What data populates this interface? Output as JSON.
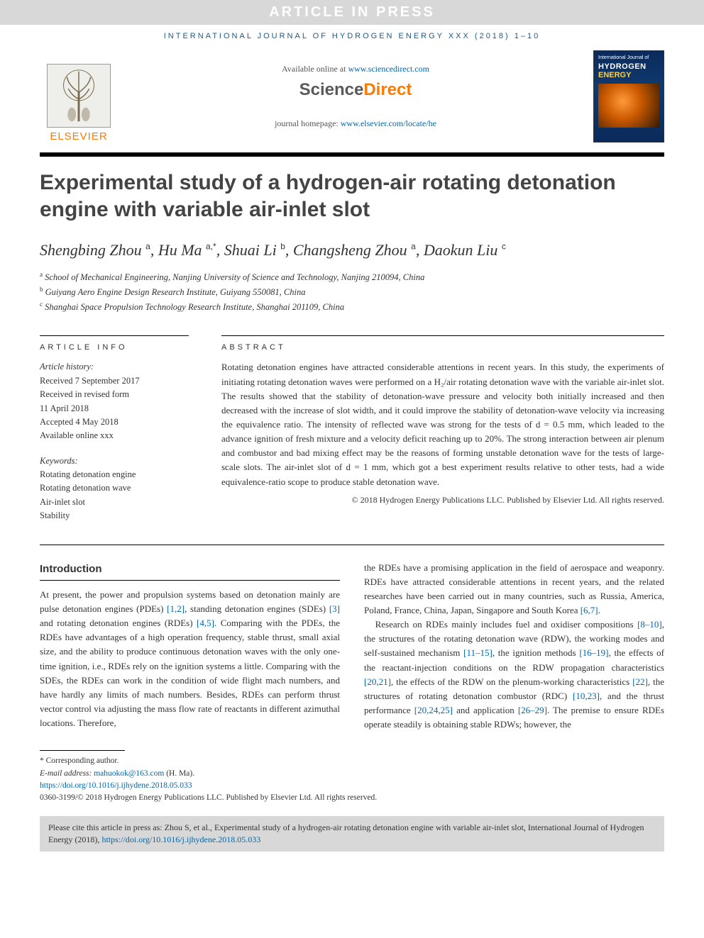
{
  "banner": "ARTICLE IN PRESS",
  "journal_ref": "INTERNATIONAL JOURNAL OF HYDROGEN ENERGY XXX (2018) 1–10",
  "header": {
    "elsevier": "ELSEVIER",
    "available": "Available online at ",
    "available_link": "www.sciencedirect.com",
    "sd_science": "Science",
    "sd_direct": "Direct",
    "homepage_label": "journal homepage: ",
    "homepage_link": "www.elsevier.com/locate/he",
    "cover_line1": "International Journal of",
    "cover_line2": "HYDROGEN",
    "cover_line3": "ENERGY"
  },
  "title": "Experimental study of a hydrogen-air rotating detonation engine with variable air-inlet slot",
  "authors_html": "Shengbing Zhou <sup>a</sup>, Hu Ma <sup>a,*</sup>, Shuai Li <sup>b</sup>, Changsheng Zhou <sup>a</sup>, Daokun Liu <sup>c</sup>",
  "affiliations": {
    "a": "School of Mechanical Engineering, Nanjing University of Science and Technology, Nanjing 210094, China",
    "b": "Guiyang Aero Engine Design Research Institute, Guiyang 550081, China",
    "c": "Shanghai Space Propulsion Technology Research Institute, Shanghai 201109, China"
  },
  "info_heading": "ARTICLE INFO",
  "abstract_heading": "ABSTRACT",
  "history_label": "Article history:",
  "history": {
    "received": "Received 7 September 2017",
    "revised1": "Received in revised form",
    "revised2": "11 April 2018",
    "accepted": "Accepted 4 May 2018",
    "online": "Available online xxx"
  },
  "keywords_label": "Keywords:",
  "keywords": [
    "Rotating detonation engine",
    "Rotating detonation wave",
    "Air-inlet slot",
    "Stability"
  ],
  "abstract": "Rotating detonation engines have attracted considerable attentions in recent years. In this study, the experiments of initiating rotating detonation waves were performed on a H₂/air rotating detonation wave with the variable air-inlet slot. The results showed that the stability of detonation-wave pressure and velocity both initially increased and then decreased with the increase of slot width, and it could improve the stability of detonation-wave velocity via increasing the equivalence ratio. The intensity of reflected wave was strong for the tests of d = 0.5 mm, which leaded to the advance ignition of fresh mixture and a velocity deficit reaching up to 20%. The strong interaction between air plenum and combustor and bad mixing effect may be the reasons of forming unstable detonation wave for the tests of large-scale slots. The air-inlet slot of d = 1 mm, which got a best experiment results relative to other tests, had a wide equivalence-ratio scope to produce stable detonation wave.",
  "copyright": "© 2018 Hydrogen Energy Publications LLC. Published by Elsevier Ltd. All rights reserved.",
  "intro_heading": "Introduction",
  "intro_col1": "At present, the power and propulsion systems based on detonation mainly are pulse detonation engines (PDEs) [1,2], standing detonation engines (SDEs) [3] and rotating detonation engines (RDEs) [4,5]. Comparing with the PDEs, the RDEs have advantages of a high operation frequency, stable thrust, small axial size, and the ability to produce continuous detonation waves with the only one-time ignition, i.e., RDEs rely on the ignition systems a little. Comparing with the SDEs, the RDEs can work in the condition of wide flight mach numbers, and have hardly any limits of mach numbers. Besides, RDEs can perform thrust vector control via adjusting the mass flow rate of reactants in different azimuthal locations. Therefore,",
  "intro_col2_p1": "the RDEs have a promising application in the field of aerospace and weaponry. RDEs have attracted considerable attentions in recent years, and the related researches have been carried out in many countries, such as Russia, America, Poland, France, China, Japan, Singapore and South Korea [6,7].",
  "intro_col2_p2": "Research on RDEs mainly includes fuel and oxidiser compositions [8–10], the structures of the rotating detonation wave (RDW), the working modes and self-sustained mechanism [11–15], the ignition methods [16–19], the effects of the reactant-injection conditions on the RDW propagation characteristics [20,21], the effects of the RDW on the plenum-working characteristics [22], the structures of rotating detonation combustor (RDC) [10,23], and the thrust performance [20,24,25] and application [26–29]. The premise to ensure RDEs operate steadily is obtaining stable RDWs; however, the",
  "footnotes": {
    "corresponding": "* Corresponding author.",
    "email_label": "E-mail address: ",
    "email": "mahuokok@163.com",
    "email_name": " (H. Ma).",
    "doi": "https://doi.org/10.1016/j.ijhydene.2018.05.033"
  },
  "issn_line": "0360-3199/© 2018 Hydrogen Energy Publications LLC. Published by Elsevier Ltd. All rights reserved.",
  "cite_box": {
    "text": "Please cite this article in press as: Zhou S, et al., Experimental study of a hydrogen-air rotating detonation engine with variable air-inlet slot, International Journal of Hydrogen Energy (2018), ",
    "link": "https://doi.org/10.1016/j.ijhydene.2018.05.033"
  },
  "colors": {
    "link": "#0066aa",
    "orange": "#ff7a00",
    "banner_bg": "#d8d8d8"
  }
}
